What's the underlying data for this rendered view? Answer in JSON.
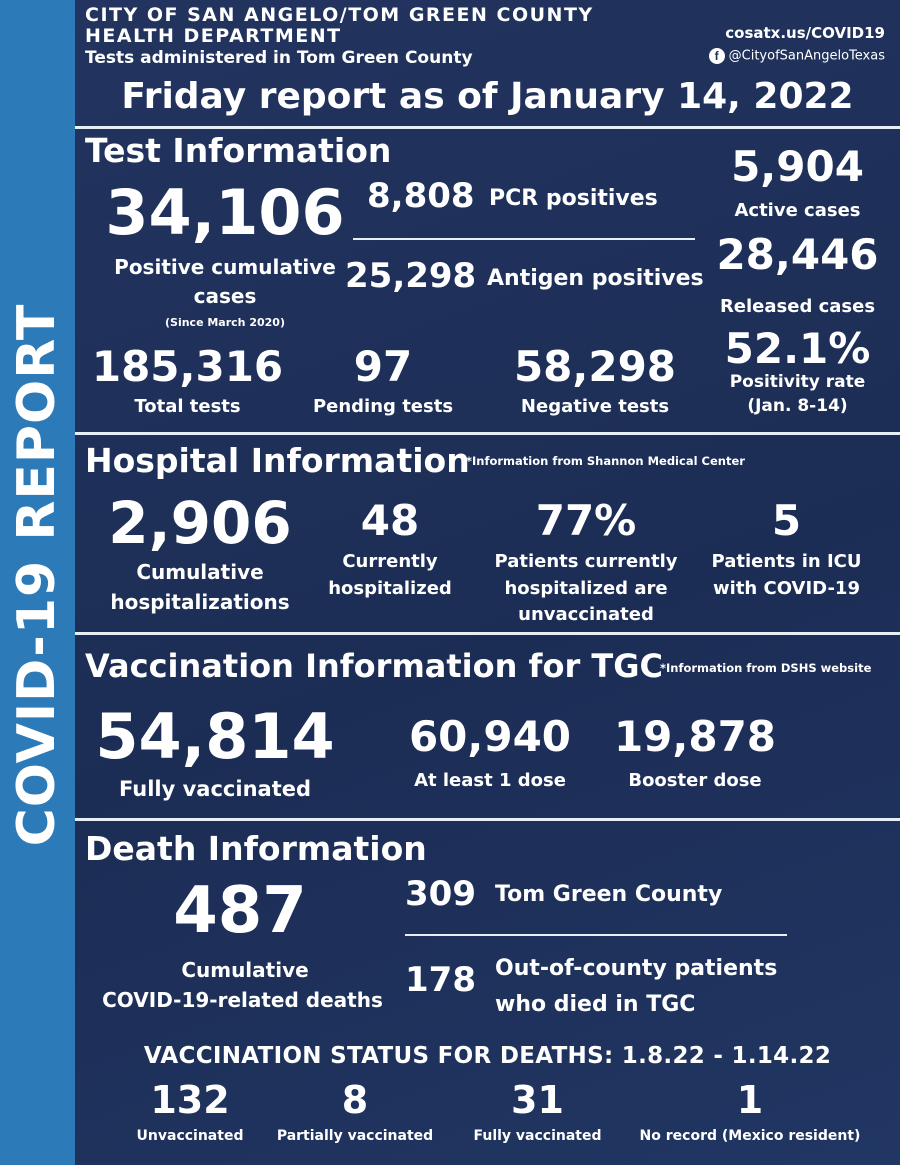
{
  "sidebar": {
    "title": "COVID-19 REPORT"
  },
  "header": {
    "org_line1": "CITY OF SAN ANGELO/TOM GREEN COUNTY",
    "org_line2": "HEALTH DEPARTMENT",
    "subtitle": "Tests administered in Tom Green County",
    "website": "cosatx.us/COVID19",
    "facebook_handle": "@CityofSanAngeloTexas",
    "report_title": "Friday report as of January 14, 2022"
  },
  "test_info": {
    "heading": "Test Information",
    "positive_cumulative": {
      "value": "34,106",
      "label_line1": "Positive cumulative",
      "label_line2": "cases",
      "note": "(Since March 2020)"
    },
    "pcr": {
      "value": "8,808",
      "label": "PCR positives"
    },
    "antigen": {
      "value": "25,298",
      "label": "Antigen positives"
    },
    "active": {
      "value": "5,904",
      "label": "Active cases"
    },
    "released": {
      "value": "28,446",
      "label": "Released cases"
    },
    "positivity": {
      "value": "52.1%",
      "label_line1": "Positivity rate",
      "label_line2": "(Jan. 8-14)"
    },
    "total_tests": {
      "value": "185,316",
      "label": "Total tests"
    },
    "pending_tests": {
      "value": "97",
      "label": "Pending tests"
    },
    "negative_tests": {
      "value": "58,298",
      "label": "Negative tests"
    }
  },
  "hospital_info": {
    "heading": "Hospital Information",
    "note": "*Information from Shannon Medical Center",
    "cumulative": {
      "value": "2,906",
      "label_line1": "Cumulative",
      "label_line2": "hospitalizations"
    },
    "current": {
      "value": "48",
      "label_line1": "Currently",
      "label_line2": "hospitalized"
    },
    "unvaccinated": {
      "value": "77%",
      "label_line1": "Patients currently",
      "label_line2": "hospitalized are",
      "label_line3": "unvaccinated"
    },
    "icu": {
      "value": "5",
      "label_line1": "Patients in ICU",
      "label_line2": "with COVID-19"
    }
  },
  "vaccination_info": {
    "heading": "Vaccination Information for TGC",
    "note": "*Information from DSHS website",
    "fully": {
      "value": "54,814",
      "label": "Fully vaccinated"
    },
    "one_dose": {
      "value": "60,940",
      "label": "At least 1 dose"
    },
    "booster": {
      "value": "19,878",
      "label": "Booster dose"
    }
  },
  "death_info": {
    "heading": "Death Information",
    "cumulative": {
      "value": "487",
      "label_line1": "Cumulative",
      "label_line2": "COVID-19-related deaths"
    },
    "tgc": {
      "value": "309",
      "label": "Tom Green County"
    },
    "out_of_county": {
      "value": "178",
      "label_line1": "Out-of-county patients",
      "label_line2": "who died in TGC"
    }
  },
  "vaccination_status": {
    "heading": "VACCINATION STATUS FOR DEATHS: 1.8.22 - 1.14.22",
    "unvaccinated": {
      "value": "132",
      "label": "Unvaccinated"
    },
    "partially": {
      "value": "8",
      "label": "Partially vaccinated"
    },
    "fully": {
      "value": "31",
      "label": "Fully vaccinated"
    },
    "no_record": {
      "value": "1",
      "label": "No record (Mexico resident)"
    }
  }
}
